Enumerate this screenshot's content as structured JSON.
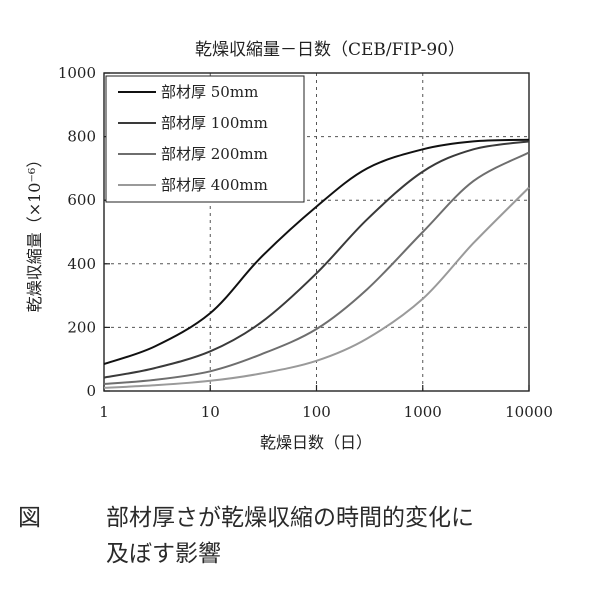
{
  "chart_data": {
    "type": "line",
    "title": "乾燥収縮量－日数（CEB/FIP-90）",
    "xlabel": "乾燥日数（日）",
    "ylabel": "乾燥収縮量（×10⁻⁶）",
    "xscale": "log",
    "xlim": [
      1,
      10000
    ],
    "ylim": [
      0,
      1000
    ],
    "x_ticks": [
      "1",
      "10",
      "100",
      "1000",
      "10000"
    ],
    "y_ticks": [
      "0",
      "200",
      "400",
      "600",
      "800",
      "1000"
    ],
    "grid": "dotted",
    "legend_position": "top-left",
    "x": [
      1,
      3,
      10,
      30,
      100,
      300,
      1000,
      3000,
      10000
    ],
    "series": [
      {
        "name": "部材厚 50mm",
        "color": "#111111",
        "values": [
          85,
          140,
          245,
          420,
          580,
          700,
          760,
          785,
          790
        ]
      },
      {
        "name": "部材厚 100mm",
        "color": "#3a3a3a",
        "values": [
          42,
          72,
          125,
          215,
          370,
          540,
          690,
          760,
          785
        ]
      },
      {
        "name": "部材厚 200mm",
        "color": "#6e6e6e",
        "values": [
          22,
          35,
          62,
          115,
          195,
          320,
          500,
          660,
          750
        ]
      },
      {
        "name": "部材厚 400mm",
        "color": "#9a9a9a",
        "values": [
          10,
          18,
          32,
          55,
          95,
          165,
          290,
          465,
          640
        ]
      }
    ]
  },
  "caption": {
    "figure_label": "図",
    "line1": "部材厚さが乾燥収縮の時間的変化に",
    "line2": "及ぼす影響"
  }
}
